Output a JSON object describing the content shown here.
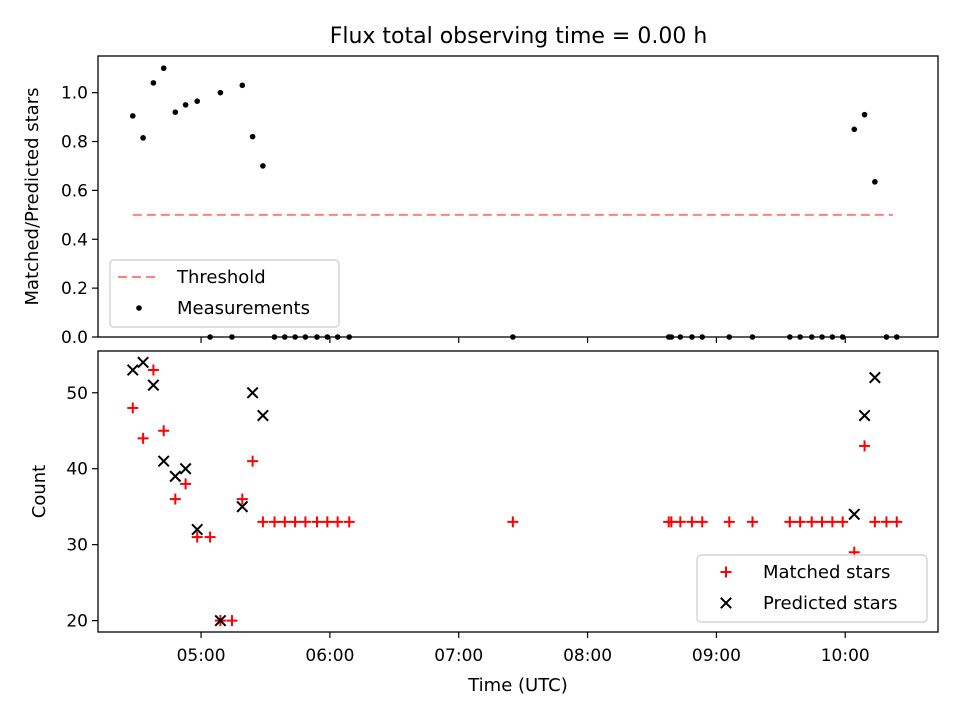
{
  "chart_data": [
    {
      "type": "scatter",
      "title": "Flux total observing time = 0.00 h",
      "xlabel": "",
      "ylabel": "Matched/Predicted stars",
      "x_unit": "hours (UTC)",
      "xlim": [
        4.2,
        10.72
      ],
      "ylim": [
        0,
        1.15
      ],
      "yticks": [
        0.0,
        0.2,
        0.4,
        0.6,
        0.8,
        1.0
      ],
      "ytick_labels": [
        "0.0",
        "0.2",
        "0.4",
        "0.6",
        "0.8",
        "1.0"
      ],
      "legend_position": "lower-left",
      "threshold": {
        "name": "Threshold",
        "value": 0.5,
        "x_range": [
          4.47,
          10.37
        ],
        "color": "#ff7f7f"
      },
      "series": [
        {
          "name": "Measurements",
          "color": "#000000",
          "marker": "dot",
          "x": [
            4.47,
            4.55,
            4.63,
            4.71,
            4.8,
            4.88,
            4.97,
            5.07,
            5.15,
            5.24,
            5.32,
            5.4,
            5.48,
            5.57,
            5.65,
            5.73,
            5.81,
            5.9,
            5.98,
            6.06,
            6.15,
            7.42,
            8.63,
            8.65,
            8.72,
            8.81,
            8.89,
            9.1,
            9.28,
            9.57,
            9.65,
            9.74,
            9.82,
            9.9,
            9.98,
            10.07,
            10.15,
            10.23,
            10.32,
            10.4
          ],
          "y": [
            0.905,
            0.815,
            1.04,
            1.1,
            0.92,
            0.95,
            0.965,
            0.0,
            1.0,
            0.0,
            1.03,
            0.82,
            0.7,
            0.0,
            0.0,
            0.0,
            0.0,
            0.0,
            0.0,
            0.0,
            0.0,
            0.0,
            0.0,
            0.0,
            0.0,
            0.0,
            0.0,
            0.0,
            0.0,
            0.0,
            0.0,
            0.0,
            0.0,
            0.0,
            0.0,
            0.85,
            0.91,
            0.635,
            0.0,
            0.0
          ]
        }
      ]
    },
    {
      "type": "scatter",
      "title": "",
      "xlabel": "Time (UTC)",
      "ylabel": "Count",
      "x_unit": "hours (UTC)",
      "xlim": [
        4.2,
        10.72
      ],
      "ylim": [
        18.5,
        55.5
      ],
      "xticks": [
        5,
        6,
        7,
        8,
        9,
        10
      ],
      "xtick_labels": [
        "05:00",
        "06:00",
        "07:00",
        "08:00",
        "09:00",
        "10:00"
      ],
      "yticks": [
        20,
        30,
        40,
        50
      ],
      "ytick_labels": [
        "20",
        "30",
        "40",
        "50"
      ],
      "legend_position": "lower-right",
      "series": [
        {
          "name": "Matched stars",
          "color": "#ff0000",
          "marker": "plus",
          "x": [
            4.47,
            4.55,
            4.63,
            4.71,
            4.8,
            4.88,
            4.97,
            5.07,
            5.15,
            5.24,
            5.32,
            5.4,
            5.48,
            5.57,
            5.65,
            5.73,
            5.81,
            5.9,
            5.98,
            6.06,
            6.15,
            7.42,
            8.63,
            8.65,
            8.72,
            8.81,
            8.89,
            9.1,
            9.28,
            9.57,
            9.65,
            9.74,
            9.82,
            9.9,
            9.98,
            10.07,
            10.15,
            10.23,
            10.32,
            10.4
          ],
          "y": [
            48,
            44,
            53,
            45,
            36,
            38,
            31,
            31,
            20,
            20,
            36,
            41,
            33,
            33,
            33,
            33,
            33,
            33,
            33,
            33,
            33,
            33,
            33,
            33,
            33,
            33,
            33,
            33,
            33,
            33,
            33,
            33,
            33,
            33,
            33,
            29,
            43,
            33,
            33,
            33
          ]
        },
        {
          "name": "Predicted stars",
          "color": "#000000",
          "marker": "x",
          "x": [
            4.47,
            4.55,
            4.63,
            4.71,
            4.8,
            4.88,
            4.97,
            5.15,
            5.32,
            5.4,
            5.48,
            10.07,
            10.15,
            10.23
          ],
          "y": [
            53,
            54,
            51,
            41,
            39,
            40,
            32,
            20,
            35,
            50,
            47,
            34,
            47,
            52
          ]
        }
      ]
    }
  ]
}
